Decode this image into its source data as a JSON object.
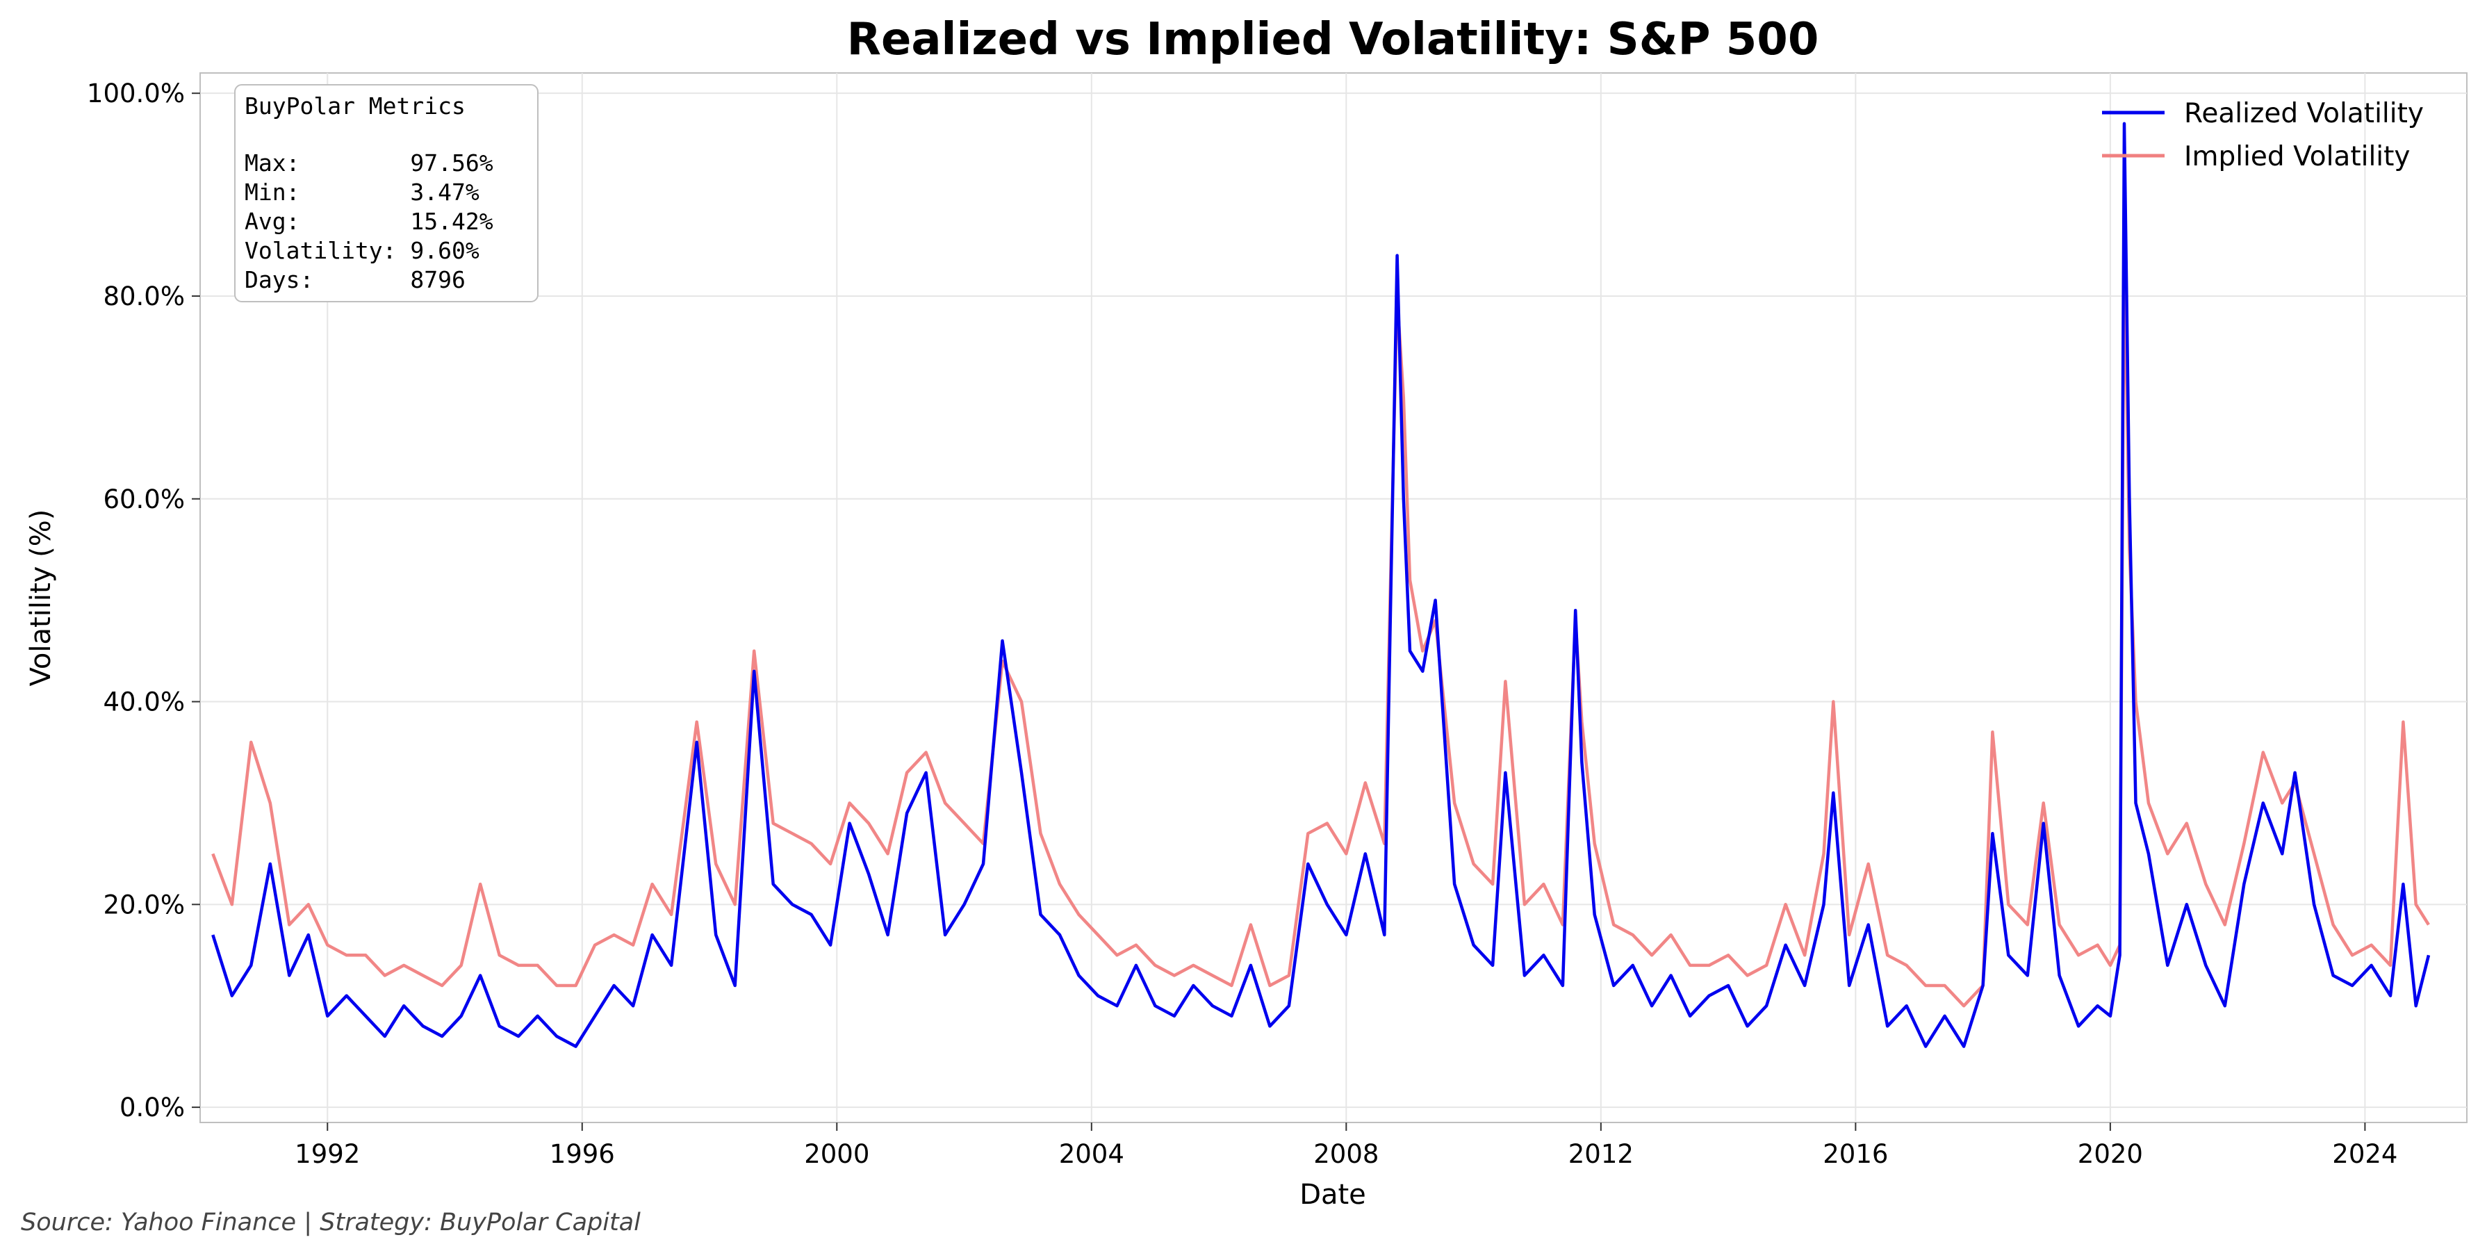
{
  "chart_data": {
    "type": "line",
    "title": "Realized vs Implied Volatility: S&P 500",
    "xlabel": "Date",
    "ylabel": "Volatility (%)",
    "xlim": [
      1990.0,
      2025.6
    ],
    "ylim": [
      -1.5,
      102
    ],
    "x_ticks": [
      1992,
      1996,
      2000,
      2004,
      2008,
      2012,
      2016,
      2020,
      2024
    ],
    "y_ticks": [
      0,
      20,
      40,
      60,
      80,
      100
    ],
    "y_tick_labels": [
      "0.0%",
      "20.0%",
      "40.0%",
      "60.0%",
      "80.0%",
      "100.0%"
    ],
    "grid": true,
    "legend_position": "top-right",
    "series": [
      {
        "name": "Realized Volatility",
        "color": "#0000ee",
        "x": [
          1990.2,
          1990.5,
          1990.8,
          1991.1,
          1991.4,
          1991.7,
          1992.0,
          1992.3,
          1992.6,
          1992.9,
          1993.2,
          1993.5,
          1993.8,
          1994.1,
          1994.4,
          1994.7,
          1995.0,
          1995.3,
          1995.6,
          1995.9,
          1996.2,
          1996.5,
          1996.8,
          1997.1,
          1997.4,
          1997.8,
          1998.1,
          1998.4,
          1998.7,
          1999.0,
          1999.3,
          1999.6,
          1999.9,
          2000.2,
          2000.5,
          2000.8,
          2001.1,
          2001.4,
          2001.7,
          2002.0,
          2002.3,
          2002.6,
          2002.9,
          2003.2,
          2003.5,
          2003.8,
          2004.1,
          2004.4,
          2004.7,
          2005.0,
          2005.3,
          2005.6,
          2005.9,
          2006.2,
          2006.5,
          2006.8,
          2007.1,
          2007.4,
          2007.7,
          2008.0,
          2008.3,
          2008.6,
          2008.8,
          2008.9,
          2009.0,
          2009.2,
          2009.4,
          2009.7,
          2010.0,
          2010.3,
          2010.5,
          2010.8,
          2011.1,
          2011.4,
          2011.6,
          2011.7,
          2011.9,
          2012.2,
          2012.5,
          2012.8,
          2013.1,
          2013.4,
          2013.7,
          2014.0,
          2014.3,
          2014.6,
          2014.9,
          2015.2,
          2015.5,
          2015.65,
          2015.9,
          2016.2,
          2016.5,
          2016.8,
          2017.1,
          2017.4,
          2017.7,
          2018.0,
          2018.15,
          2018.4,
          2018.7,
          2018.95,
          2019.2,
          2019.5,
          2019.8,
          2020.0,
          2020.15,
          2020.22,
          2020.3,
          2020.4,
          2020.6,
          2020.9,
          2021.2,
          2021.5,
          2021.8,
          2022.1,
          2022.4,
          2022.7,
          2022.9,
          2023.2,
          2023.5,
          2023.8,
          2024.1,
          2024.4,
          2024.6,
          2024.8,
          2025.0
        ],
        "y": [
          17,
          11,
          14,
          24,
          13,
          17,
          9,
          11,
          9,
          7,
          10,
          8,
          7,
          9,
          13,
          8,
          7,
          9,
          7,
          6,
          9,
          12,
          10,
          17,
          14,
          36,
          17,
          12,
          43,
          22,
          20,
          19,
          16,
          28,
          23,
          17,
          29,
          33,
          17,
          20,
          24,
          46,
          33,
          19,
          17,
          13,
          11,
          10,
          14,
          10,
          9,
          12,
          10,
          9,
          14,
          8,
          10,
          24,
          20,
          17,
          25,
          17,
          84,
          60,
          45,
          43,
          50,
          22,
          16,
          14,
          33,
          13,
          15,
          12,
          49,
          34,
          19,
          12,
          14,
          10,
          13,
          9,
          11,
          12,
          8,
          10,
          16,
          12,
          20,
          31,
          12,
          18,
          8,
          10,
          6,
          9,
          6,
          12,
          27,
          15,
          13,
          28,
          13,
          8,
          10,
          9,
          15,
          97,
          60,
          30,
          25,
          14,
          20,
          14,
          10,
          22,
          30,
          25,
          33,
          20,
          13,
          12,
          14,
          11,
          22,
          10,
          15
        ]
      },
      {
        "name": "Implied Volatility",
        "color": "#f08080",
        "x": [
          1990.2,
          1990.5,
          1990.8,
          1991.1,
          1991.4,
          1991.7,
          1992.0,
          1992.3,
          1992.6,
          1992.9,
          1993.2,
          1993.5,
          1993.8,
          1994.1,
          1994.4,
          1994.7,
          1995.0,
          1995.3,
          1995.6,
          1995.9,
          1996.2,
          1996.5,
          1996.8,
          1997.1,
          1997.4,
          1997.8,
          1998.1,
          1998.4,
          1998.7,
          1999.0,
          1999.3,
          1999.6,
          1999.9,
          2000.2,
          2000.5,
          2000.8,
          2001.1,
          2001.4,
          2001.7,
          2002.0,
          2002.3,
          2002.6,
          2002.9,
          2003.2,
          2003.5,
          2003.8,
          2004.1,
          2004.4,
          2004.7,
          2005.0,
          2005.3,
          2005.6,
          2005.9,
          2006.2,
          2006.5,
          2006.8,
          2007.1,
          2007.4,
          2007.7,
          2008.0,
          2008.3,
          2008.6,
          2008.8,
          2008.9,
          2009.0,
          2009.2,
          2009.4,
          2009.7,
          2010.0,
          2010.3,
          2010.5,
          2010.8,
          2011.1,
          2011.4,
          2011.6,
          2011.7,
          2011.9,
          2012.2,
          2012.5,
          2012.8,
          2013.1,
          2013.4,
          2013.7,
          2014.0,
          2014.3,
          2014.6,
          2014.9,
          2015.2,
          2015.5,
          2015.65,
          2015.9,
          2016.2,
          2016.5,
          2016.8,
          2017.1,
          2017.4,
          2017.7,
          2018.0,
          2018.15,
          2018.4,
          2018.7,
          2018.95,
          2019.2,
          2019.5,
          2019.8,
          2020.0,
          2020.15,
          2020.22,
          2020.3,
          2020.4,
          2020.6,
          2020.9,
          2021.2,
          2021.5,
          2021.8,
          2022.1,
          2022.4,
          2022.7,
          2022.9,
          2023.2,
          2023.5,
          2023.8,
          2024.1,
          2024.4,
          2024.6,
          2024.8,
          2025.0
        ],
        "y": [
          25,
          20,
          36,
          30,
          18,
          20,
          16,
          15,
          15,
          13,
          14,
          13,
          12,
          14,
          22,
          15,
          14,
          14,
          12,
          12,
          16,
          17,
          16,
          22,
          19,
          38,
          24,
          20,
          45,
          28,
          27,
          26,
          24,
          30,
          28,
          25,
          33,
          35,
          30,
          28,
          26,
          44,
          40,
          27,
          22,
          19,
          17,
          15,
          16,
          14,
          13,
          14,
          13,
          12,
          18,
          12,
          13,
          27,
          28,
          25,
          32,
          26,
          80,
          70,
          52,
          45,
          48,
          30,
          24,
          22,
          42,
          20,
          22,
          18,
          48,
          38,
          26,
          18,
          17,
          15,
          17,
          14,
          14,
          15,
          13,
          14,
          20,
          15,
          25,
          40,
          17,
          24,
          15,
          14,
          12,
          12,
          10,
          12,
          37,
          20,
          18,
          30,
          18,
          15,
          16,
          14,
          16,
          85,
          55,
          40,
          30,
          25,
          28,
          22,
          18,
          26,
          35,
          30,
          32,
          25,
          18,
          15,
          16,
          14,
          38,
          20,
          18
        ]
      }
    ]
  },
  "stats_box": {
    "title": "BuyPolar Metrics",
    "lines": [
      "Max:        97.56%",
      "Min:        3.47%",
      "Avg:        15.42%",
      "Volatility: 9.60%",
      "Days:       8796"
    ]
  },
  "footer": {
    "source": "Source: Yahoo Finance | Strategy: BuyPolar Capital"
  },
  "colors": {
    "realized": "#0000ee",
    "implied": "#f08080",
    "grid": "#e6e6e6",
    "spine": "#bfbfbf"
  }
}
